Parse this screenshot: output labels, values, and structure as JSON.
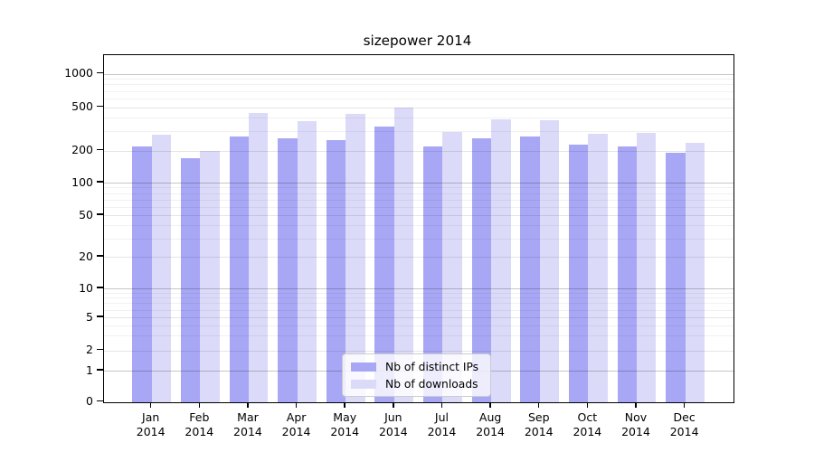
{
  "chart_data": {
    "type": "bar",
    "title": "sizepower 2014",
    "categories": [
      "Jan 2014",
      "Feb 2014",
      "Mar 2014",
      "Apr 2014",
      "May 2014",
      "Jun 2014",
      "Jul 2014",
      "Aug 2014",
      "Sep 2014",
      "Oct 2014",
      "Nov 2014",
      "Dec 2014"
    ],
    "series": [
      {
        "name": "Nb of distinct IPs",
        "color": "#a7a7f5",
        "values": [
          217,
          170,
          269,
          261,
          247,
          332,
          217,
          261,
          271,
          227,
          218,
          190
        ]
      },
      {
        "name": "Nb of downloads",
        "color": "#dbdbf9",
        "values": [
          277,
          200,
          446,
          374,
          432,
          498,
          297,
          386,
          379,
          284,
          290,
          236
        ]
      }
    ],
    "yscale": "symlog",
    "yticks": [
      0,
      1,
      2,
      5,
      10,
      20,
      50,
      100,
      200,
      500,
      1000
    ],
    "minor_yticks": [
      3,
      4,
      6,
      7,
      8,
      9,
      30,
      40,
      60,
      70,
      80,
      90,
      300,
      400,
      600,
      700,
      800,
      900
    ],
    "ylim": [
      0,
      1500
    ],
    "xlabel": "",
    "ylabel": "",
    "grid": true,
    "legend_position": "bottom-center",
    "frame_color": "#000000",
    "background_color": "#ffffff"
  }
}
